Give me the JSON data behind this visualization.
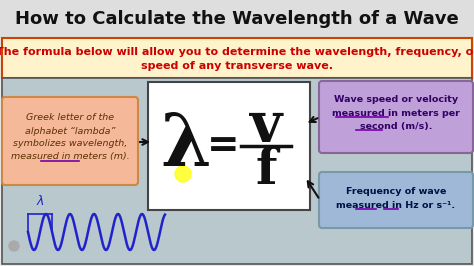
{
  "title": "How to Calculate the Wavelength of a Wave",
  "title_fontsize": 13,
  "subtitle_line1": "The formula below will allow you to determine the wavelength, frequency, or",
  "subtitle_line2": "speed of any transverse wave.",
  "subtitle_fontsize": 8.0,
  "subtitle_color": "#cc0000",
  "subtitle_bg": "#fff3cc",
  "title_bg": "#e8e8e8",
  "main_bg": "#b8c8cc",
  "formula_box_bg": "#ffffff",
  "formula_lambda": "λ",
  "formula_v": "v",
  "formula_f": "f",
  "left_box_bg": "#f5b899",
  "left_box_text_line1": "Greek letter of the",
  "left_box_text_line2": "alphabet “lambda”",
  "left_box_text_line3": "symbolizes wavelength,",
  "left_box_text_line4": "measured in meters (m).",
  "left_box_color": "#5a3200",
  "right_top_box_bg": "#c0a0d8",
  "right_top_box_text_line1": "Wave speed or velocity",
  "right_top_box_text_line2": "measured in meters per",
  "right_top_box_text_line3": "second (m/s).",
  "right_top_box_color": "#330066",
  "right_bot_box_bg": "#a0b8d8",
  "right_bot_box_text_line1": "Frequency of wave",
  "right_bot_box_text_line2": "measured in Hz or s⁻¹.",
  "right_bot_box_color": "#001144",
  "wave_color": "#2222cc",
  "arrow_color": "#111111",
  "yellow_circle_color": "#ffff00"
}
